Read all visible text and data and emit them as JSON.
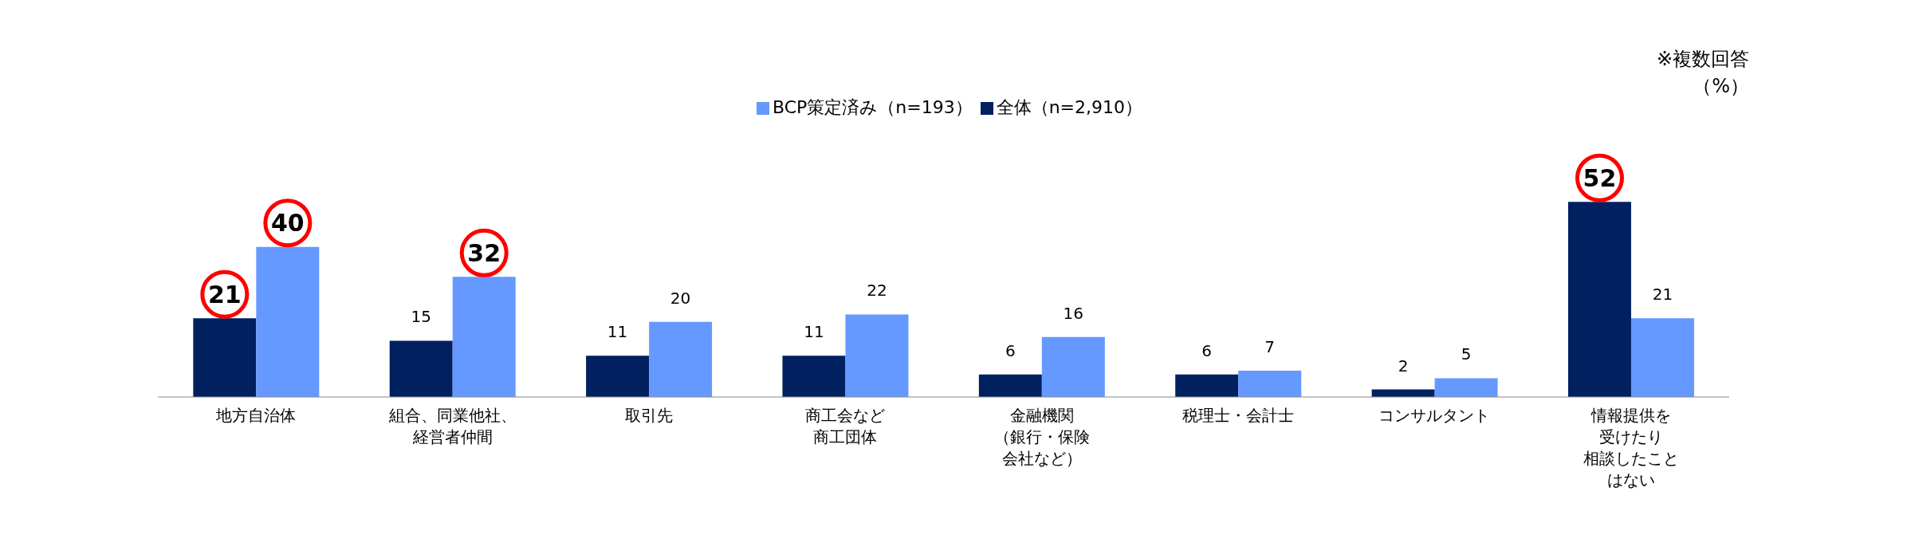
{
  "chart_data": {
    "type": "bar",
    "categories": [
      "地方自治体",
      "組合、同業他社、経営者仲間",
      "取引先",
      "商工会など商工団体",
      "金融機関（銀行・保険会社など）",
      "税理士・会計士",
      "コンサルタント",
      "情報提供を受けたり相談したことはない"
    ],
    "series": [
      {
        "name": "全体（n=2,910）",
        "color": "#002060",
        "values": [
          21,
          15,
          11,
          11,
          6,
          6,
          2,
          52
        ]
      },
      {
        "name": "BCP策定済み（n=193）",
        "color": "#6699ff",
        "values": [
          40,
          32,
          20,
          22,
          16,
          7,
          5,
          21
        ]
      }
    ],
    "data_labels": true,
    "legend": "top",
    "annotations": [
      "※複数回答",
      "（%）"
    ]
  }
}
